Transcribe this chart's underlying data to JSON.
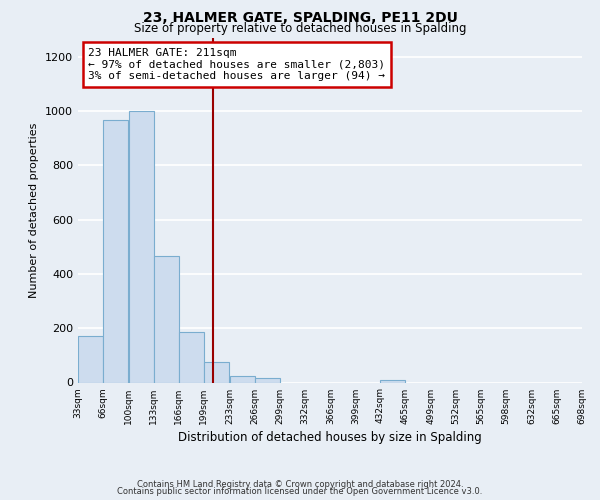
{
  "title": "23, HALMER GATE, SPALDING, PE11 2DU",
  "subtitle": "Size of property relative to detached houses in Spalding",
  "xlabel": "Distribution of detached houses by size in Spalding",
  "ylabel": "Number of detached properties",
  "bar_left_edges": [
    33,
    66,
    100,
    133,
    166,
    199,
    233,
    266,
    299,
    332,
    366,
    399,
    432,
    465,
    499,
    532,
    565,
    598,
    632,
    665
  ],
  "bar_heights": [
    170,
    965,
    1000,
    465,
    185,
    75,
    25,
    15,
    0,
    0,
    0,
    0,
    10,
    0,
    0,
    0,
    0,
    0,
    0,
    0
  ],
  "bin_width": 33,
  "bar_color": "#cddcee",
  "bar_edge_color": "#7aadcf",
  "tick_labels": [
    "33sqm",
    "66sqm",
    "100sqm",
    "133sqm",
    "166sqm",
    "199sqm",
    "233sqm",
    "266sqm",
    "299sqm",
    "332sqm",
    "366sqm",
    "399sqm",
    "432sqm",
    "465sqm",
    "499sqm",
    "532sqm",
    "565sqm",
    "598sqm",
    "632sqm",
    "665sqm",
    "698sqm"
  ],
  "vline_x": 211,
  "vline_color": "#990000",
  "annotation_text": "23 HALMER GATE: 211sqm\n← 97% of detached houses are smaller (2,803)\n3% of semi-detached houses are larger (94) →",
  "annotation_box_color": "#ffffff",
  "annotation_box_edge_color": "#cc0000",
  "ylim": [
    0,
    1270
  ],
  "yticks": [
    0,
    200,
    400,
    600,
    800,
    1000,
    1200
  ],
  "footnote1": "Contains HM Land Registry data © Crown copyright and database right 2024.",
  "footnote2": "Contains public sector information licensed under the Open Government Licence v3.0.",
  "background_color": "#e8eef5",
  "grid_color": "#ffffff"
}
